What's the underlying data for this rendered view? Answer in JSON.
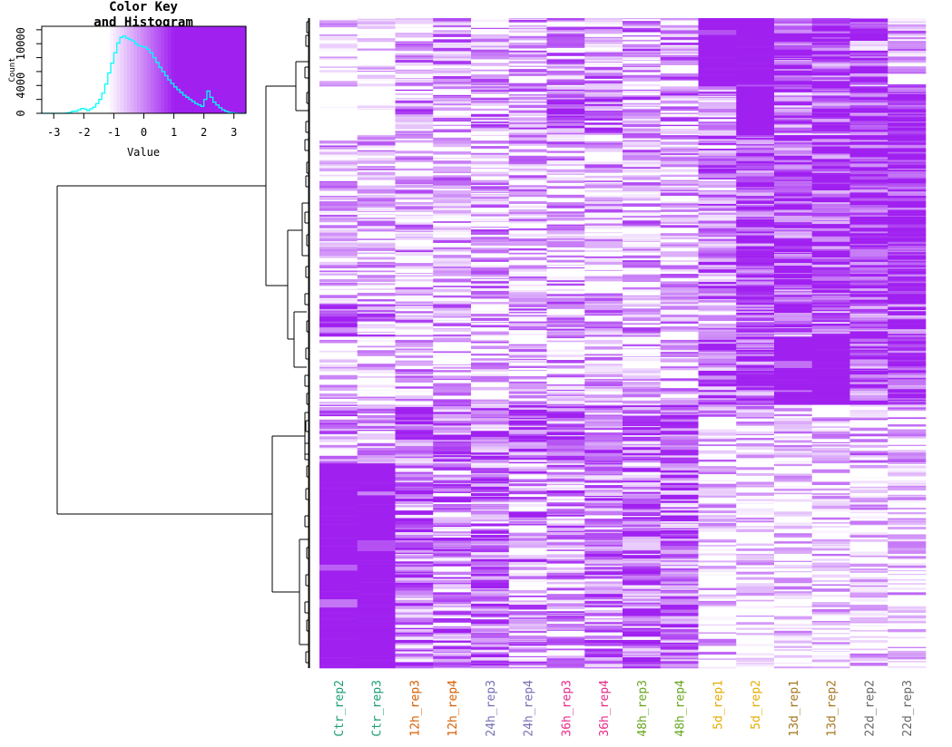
{
  "chart_data": [
    {
      "type": "histogram",
      "title_line1": "Color Key",
      "title_line2": "and Histogram",
      "xlabel": "Value",
      "ylabel": "Count",
      "xlim": [
        -3.4,
        3.4
      ],
      "ylim": [
        0,
        12500
      ],
      "x_ticks": [
        "-3",
        "-2",
        "-1",
        "0",
        "1",
        "2",
        "3"
      ],
      "x_tick_values": [
        -3,
        -2,
        -1,
        0,
        1,
        2,
        3
      ],
      "y_tick_values": [
        0,
        2000,
        4000,
        6000,
        8000,
        10000,
        12000
      ],
      "y_tick_labels": [
        {
          "value": 0,
          "label": "0"
        },
        {
          "value": 4000,
          "label": "4000"
        },
        {
          "value": 10000,
          "label": "10000"
        }
      ],
      "line_color": "#00FFFF",
      "color_key": {
        "low": "#FFFFFF",
        "high": "#A020F0",
        "gradient_start": -1.2,
        "saturate_at": 1.0
      },
      "bins": [
        [
          -3.4,
          0
        ],
        [
          -3.2,
          0
        ],
        [
          -3.0,
          0
        ],
        [
          -2.8,
          0
        ],
        [
          -2.6,
          50
        ],
        [
          -2.5,
          120
        ],
        [
          -2.4,
          300
        ],
        [
          -2.2,
          500
        ],
        [
          -2.1,
          700
        ],
        [
          -2.0,
          600
        ],
        [
          -1.9,
          400
        ],
        [
          -1.8,
          650
        ],
        [
          -1.7,
          900
        ],
        [
          -1.6,
          1400
        ],
        [
          -1.5,
          2000
        ],
        [
          -1.4,
          2900
        ],
        [
          -1.3,
          4200
        ],
        [
          -1.2,
          5800
        ],
        [
          -1.1,
          7200
        ],
        [
          -1.0,
          8700
        ],
        [
          -0.9,
          10100
        ],
        [
          -0.8,
          10900
        ],
        [
          -0.7,
          11100
        ],
        [
          -0.6,
          10800
        ],
        [
          -0.5,
          10600
        ],
        [
          -0.4,
          10400
        ],
        [
          -0.3,
          10000
        ],
        [
          -0.2,
          9700
        ],
        [
          -0.1,
          9600
        ],
        [
          0.0,
          9500
        ],
        [
          0.1,
          9200
        ],
        [
          0.2,
          8700
        ],
        [
          0.3,
          8000
        ],
        [
          0.4,
          7300
        ],
        [
          0.5,
          6600
        ],
        [
          0.6,
          6000
        ],
        [
          0.7,
          5400
        ],
        [
          0.8,
          4800
        ],
        [
          0.9,
          4300
        ],
        [
          1.0,
          3800
        ],
        [
          1.1,
          3400
        ],
        [
          1.2,
          3000
        ],
        [
          1.3,
          2600
        ],
        [
          1.4,
          2300
        ],
        [
          1.5,
          2000
        ],
        [
          1.6,
          1700
        ],
        [
          1.7,
          1400
        ],
        [
          1.8,
          1200
        ],
        [
          1.9,
          1000
        ],
        [
          2.0,
          2000
        ],
        [
          2.1,
          3200
        ],
        [
          2.2,
          2300
        ],
        [
          2.3,
          1600
        ],
        [
          2.4,
          1200
        ],
        [
          2.5,
          800
        ],
        [
          2.6,
          500
        ],
        [
          2.7,
          300
        ],
        [
          2.8,
          150
        ],
        [
          2.9,
          80
        ],
        [
          3.0,
          40
        ],
        [
          3.1,
          20
        ],
        [
          3.2,
          0
        ],
        [
          3.4,
          0
        ]
      ]
    },
    {
      "type": "heatmap",
      "columns": [
        {
          "label": "Ctr_rep2",
          "color": "#1B9E77"
        },
        {
          "label": "Ctr_rep3",
          "color": "#1B9E77"
        },
        {
          "label": "12h_rep3",
          "color": "#D95F02"
        },
        {
          "label": "12h_rep4",
          "color": "#D95F02"
        },
        {
          "label": "24h_rep3",
          "color": "#7570B3"
        },
        {
          "label": "24h_rep4",
          "color": "#7570B3"
        },
        {
          "label": "36h_rep3",
          "color": "#E7298A"
        },
        {
          "label": "36h_rep4",
          "color": "#E7298A"
        },
        {
          "label": "48h_rep3",
          "color": "#66A61E"
        },
        {
          "label": "48h_rep4",
          "color": "#66A61E"
        },
        {
          "label": "5d_rep1",
          "color": "#E6AB02"
        },
        {
          "label": "5d_rep2",
          "color": "#E6AB02"
        },
        {
          "label": "13d_rep1",
          "color": "#A6761D"
        },
        {
          "label": "13d_rep2",
          "color": "#A6761D"
        },
        {
          "label": "22d_rep2",
          "color": "#666666"
        },
        {
          "label": "22d_rep3",
          "color": "#666666"
        }
      ],
      "color_low": "#FFFFFF",
      "color_high": "#A020F0",
      "row_clusters_note": "approximate mean intensity (0 = white, 1 = saturated purple) per column for each row block, top to bottom",
      "row_clusters": [
        {
          "fraction": 0.105,
          "means": [
            0.25,
            0.1,
            0.35,
            0.4,
            0.35,
            0.4,
            0.4,
            0.45,
            0.45,
            0.4,
            1.0,
            1.0,
            0.7,
            0.8,
            0.6,
            0.35
          ]
        },
        {
          "fraction": 0.075,
          "means": [
            0.02,
            0.02,
            0.5,
            0.4,
            0.5,
            0.45,
            0.55,
            0.6,
            0.45,
            0.5,
            0.5,
            1.0,
            0.6,
            0.7,
            0.7,
            0.95
          ]
        },
        {
          "fraction": 0.26,
          "means": [
            0.3,
            0.25,
            0.35,
            0.3,
            0.35,
            0.3,
            0.35,
            0.3,
            0.35,
            0.3,
            0.55,
            0.85,
            0.8,
            0.85,
            0.95,
            0.95
          ]
        },
        {
          "fraction": 0.05,
          "means": [
            0.8,
            0.5,
            0.35,
            0.35,
            0.35,
            0.4,
            0.35,
            0.4,
            0.35,
            0.35,
            0.3,
            0.6,
            0.6,
            0.7,
            0.7,
            0.8
          ]
        },
        {
          "fraction": 0.105,
          "means": [
            0.2,
            0.15,
            0.3,
            0.3,
            0.3,
            0.3,
            0.3,
            0.3,
            0.3,
            0.3,
            0.7,
            0.75,
            1.0,
            1.0,
            0.75,
            0.75
          ]
        },
        {
          "fraction": 0.09,
          "means": [
            0.45,
            0.4,
            0.6,
            0.6,
            0.6,
            0.6,
            0.6,
            0.55,
            0.6,
            0.6,
            0.25,
            0.3,
            0.15,
            0.15,
            0.3,
            0.25
          ]
        },
        {
          "fraction": 0.315,
          "means": [
            1.0,
            1.0,
            0.55,
            0.5,
            0.55,
            0.5,
            0.5,
            0.5,
            0.55,
            0.55,
            0.15,
            0.1,
            0.1,
            0.1,
            0.15,
            0.15
          ]
        }
      ],
      "row_count_rendered": 1200
    }
  ]
}
